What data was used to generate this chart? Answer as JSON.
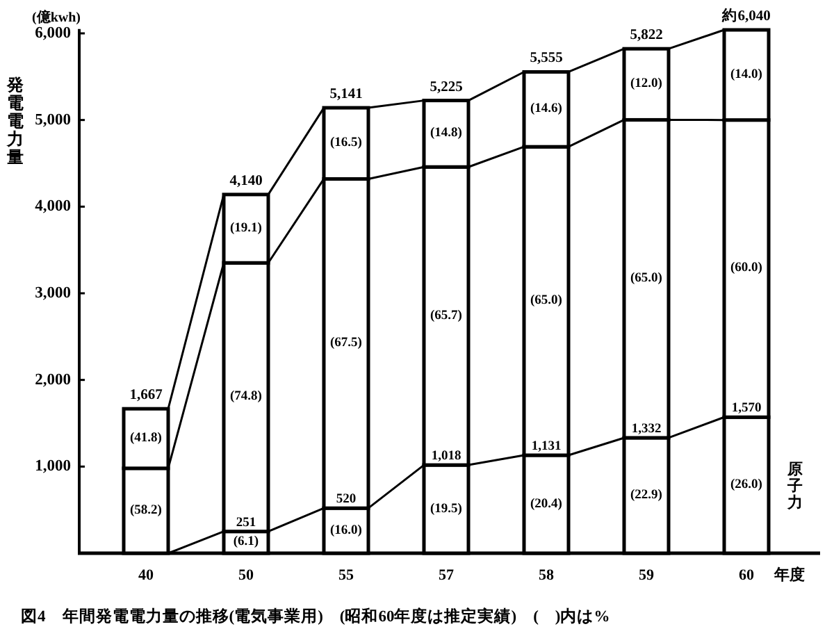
{
  "chart_data": {
    "type": "bar",
    "stacked": true,
    "title": "図4　年間発電電力量の推移(電気事業用)　(昭和60年度は推定実績)　(　)内は%",
    "ylabel": "発電電力量",
    "xlabel": "年度",
    "categories": [
      "40",
      "50",
      "55",
      "57",
      "58",
      "59",
      "60"
    ],
    "series": [
      {
        "name": "原子力",
        "color": "#ffffff",
        "values": [
          0,
          251,
          520,
          1018,
          1131,
          1332,
          1570
        ],
        "value_labels": [
          null,
          "251",
          "520",
          "1,018",
          "1,131",
          "1,332",
          "1,570"
        ]
      },
      {
        "color": "#ffffff",
        "values": [
          980,
          3100,
          3800,
          3440,
          3560,
          3670,
          3430
        ]
      },
      {
        "color": "#ffffff",
        "values": [
          687,
          789,
          821,
          767,
          864,
          820,
          1040
        ]
      }
    ],
    "totals": [
      "1,667",
      "4,140",
      "5,141",
      "5,225",
      "5,555",
      "5,822",
      "約6,040"
    ],
    "annotations": [
      "(億kwh)",
      "(58.2)",
      "(41.8)",
      {
        "text": "(6.1)",
        "x": "50",
        "y": 251
      },
      "(74.8)",
      "(19.1)",
      {
        "text": "(16.0)",
        "x": "55",
        "y": 520
      },
      "(67.5)",
      "(16.5)",
      "(19.5)",
      "(65.7)",
      "(14.8)",
      "(20.4)",
      "(65.0)",
      "(14.6)",
      "(22.9)",
      "(65.0)",
      "(12.0)",
      "(26.0)",
      "(60.0)",
      "(14.0)"
    ],
    "ylim": [
      0,
      6050
    ],
    "yticks": [
      {
        "value": 1000,
        "label": "1,000"
      },
      {
        "value": 2000,
        "label": "2,000"
      },
      {
        "value": 3000,
        "label": "3,000"
      },
      {
        "value": 4000,
        "label": "4,000"
      },
      {
        "value": 5000,
        "label": "5,000"
      },
      {
        "value": 6000,
        "label": "6,000"
      }
    ]
  }
}
